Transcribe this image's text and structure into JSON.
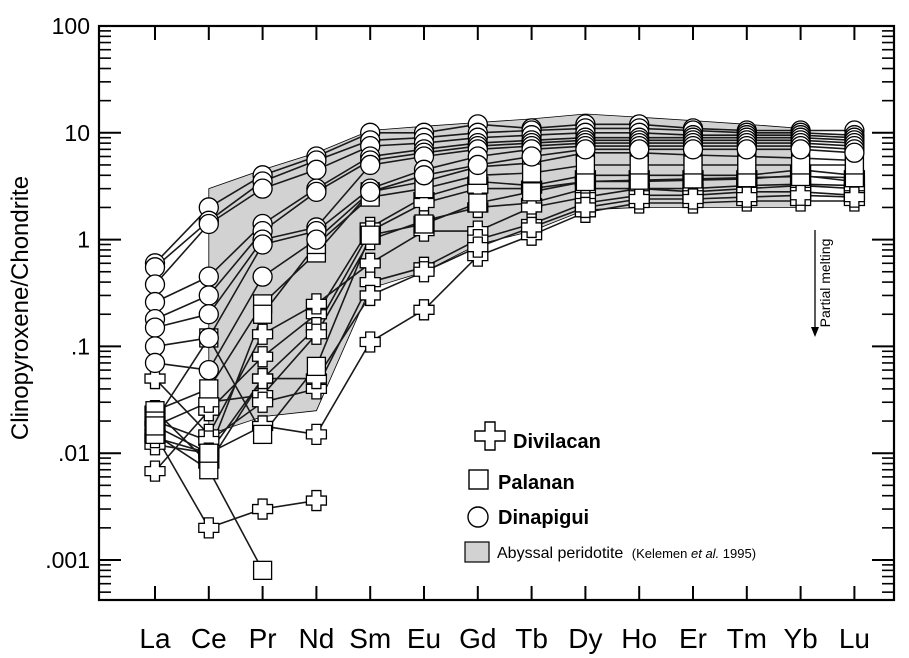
{
  "chart_data": {
    "type": "line",
    "title": "",
    "xlabel": "",
    "ylabel": "Clinopyroxene/Chondrite",
    "yscale": "log",
    "ylim": [
      0.0005,
      100
    ],
    "grid": false,
    "legend_position": "lower-right",
    "categories": [
      "La",
      "Ce",
      "Pr",
      "Nd",
      "Sm",
      "Eu",
      "Gd",
      "Tb",
      "Dy",
      "Ho",
      "Er",
      "Tm",
      "Yb",
      "Lu"
    ],
    "y_tick_values": [
      0.001,
      0.01,
      0.1,
      1,
      10,
      100
    ],
    "y_tick_labels": [
      ".001",
      ".01",
      ".1",
      "1",
      "10",
      "100"
    ],
    "annotation": "Partial melting",
    "abyssal_band": {
      "name": "Abyssal peridotite",
      "citation_prefix": "(Kelemen ",
      "citation_italic": "et al.",
      "citation_suffix": " 1995)",
      "upper": [
        null,
        3.0,
        4.5,
        6.5,
        10.5,
        11.5,
        12.5,
        13.5,
        15.0,
        14.0,
        13.0,
        12.0,
        11.0,
        null
      ],
      "lower": [
        null,
        0.015,
        0.022,
        0.025,
        0.35,
        0.5,
        0.9,
        1.2,
        1.9,
        2.0,
        2.0,
        2.0,
        2.0,
        null
      ]
    },
    "series": [
      {
        "name": "Divilacan",
        "marker": "cross",
        "lines": [
          [
            0.015,
            0.002,
            0.003,
            0.0036,
            null,
            null,
            null,
            null,
            null,
            null,
            null,
            null,
            null,
            null
          ],
          [
            0.0068,
            0.025,
            0.08,
            0.2,
            1.3,
            2.5,
            3.5,
            3.2,
            4.0,
            4.0,
            4.0,
            4.0,
            4.5,
            4.0
          ],
          [
            0.012,
            0.01,
            0.05,
            0.15,
            1.2,
            2.2,
            3.0,
            3.0,
            3.5,
            3.5,
            3.6,
            3.7,
            4.0,
            3.5
          ],
          [
            0.018,
            0.03,
            0.035,
            0.13,
            1.0,
            1.5,
            2.0,
            2.2,
            3.0,
            3.0,
            3.0,
            3.2,
            3.3,
            3.2
          ],
          [
            0.05,
            0.015,
            0.13,
            0.25,
            0.6,
            1.2,
            1.2,
            2.0,
            2.5,
            3.0,
            2.8,
            3.0,
            3.2,
            3.0
          ],
          [
            0.02,
            0.013,
            0.03,
            0.04,
            0.4,
            0.55,
            1.0,
            1.4,
            2.2,
            2.6,
            2.6,
            2.8,
            2.8,
            2.6
          ],
          [
            0.014,
            0.01,
            0.018,
            0.015,
            0.11,
            0.22,
            0.7,
            1.1,
            1.8,
            2.2,
            2.2,
            2.3,
            2.3,
            2.3
          ],
          [
            0.025,
            0.008,
            0.05,
            0.05,
            0.3,
            0.5,
            0.85,
            1.3,
            2.0,
            2.4,
            2.4,
            2.5,
            2.6,
            2.5
          ]
        ]
      },
      {
        "name": "Palanan",
        "marker": "square",
        "lines": [
          [
            0.015,
            0.007,
            0.0008,
            null,
            null,
            null,
            null,
            null,
            null,
            null,
            null,
            null,
            null,
            null
          ],
          [
            0.025,
            0.04,
            0.25,
            0.75,
            2.8,
            3.5,
            4.8,
            5.2,
            6.5,
            6.5,
            6.2,
            6.0,
            5.8,
            5.5
          ],
          [
            0.02,
            0.12,
            0.015,
            0.065,
            1.1,
            1.4,
            2.2,
            2.8,
            3.5,
            3.6,
            3.7,
            3.8,
            3.9,
            3.8
          ],
          [
            0.018,
            0.01,
            0.2,
            0.9,
            2.5,
            3.0,
            4.0,
            4.2,
            5.0,
            5.0,
            5.0,
            5.0,
            5.0,
            5.0
          ]
        ]
      },
      {
        "name": "Dinapigui",
        "marker": "circle",
        "lines": [
          [
            0.6,
            2.0,
            4.0,
            6.0,
            10.0,
            10.0,
            12.0,
            11.0,
            12.0,
            12.0,
            11.0,
            10.5,
            10.5,
            10.5
          ],
          [
            0.55,
            1.5,
            3.5,
            5.5,
            8.5,
            9.0,
            10.0,
            10.5,
            11.0,
            11.0,
            10.5,
            10.0,
            10.0,
            9.5
          ],
          [
            0.38,
            1.4,
            3.0,
            4.5,
            7.5,
            8.0,
            9.0,
            9.5,
            10.0,
            10.0,
            9.5,
            9.5,
            9.5,
            9.0
          ],
          [
            0.26,
            0.45,
            1.4,
            3.0,
            6.0,
            7.0,
            8.0,
            8.5,
            9.0,
            9.0,
            9.0,
            9.0,
            9.0,
            8.5
          ],
          [
            0.18,
            0.3,
            1.2,
            2.8,
            5.5,
            6.5,
            7.5,
            8.0,
            8.5,
            8.5,
            8.5,
            8.5,
            8.5,
            8.0
          ],
          [
            0.15,
            0.2,
            1.0,
            1.3,
            5.0,
            6.0,
            7.0,
            7.5,
            8.0,
            8.0,
            8.0,
            8.0,
            8.0,
            7.5
          ],
          [
            0.1,
            0.12,
            0.9,
            1.2,
            3.0,
            4.5,
            6.0,
            7.0,
            7.5,
            7.5,
            7.5,
            7.5,
            7.5,
            7.0
          ],
          [
            0.07,
            0.06,
            0.45,
            1.0,
            2.8,
            4.0,
            5.0,
            6.0,
            7.0,
            7.0,
            7.0,
            7.0,
            7.0,
            6.5
          ]
        ]
      }
    ]
  }
}
